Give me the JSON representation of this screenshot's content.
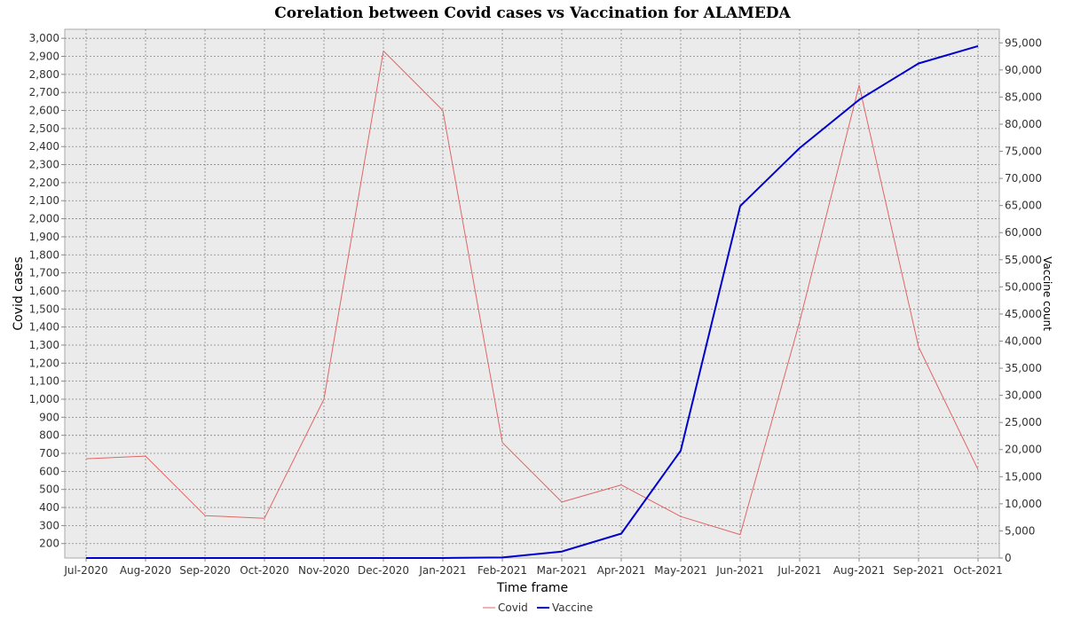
{
  "chart_data": {
    "type": "line",
    "title": "Corelation between Covid cases vs Vaccination for ALAMEDA",
    "xlabel": "Time frame",
    "ylabel": "Covid cases",
    "y2label": "Vaccine count",
    "categories": [
      "Jul-2020",
      "Aug-2020",
      "Sep-2020",
      "Oct-2020",
      "Nov-2020",
      "Dec-2020",
      "Jan-2021",
      "Feb-2021",
      "Mar-2021",
      "Apr-2021",
      "May-2021",
      "Jun-2021",
      "Jul-2021",
      "Aug-2021",
      "Sep-2021",
      "Oct-2021"
    ],
    "ylim": [
      120,
      3050
    ],
    "yticks": [
      200,
      300,
      400,
      500,
      600,
      700,
      800,
      900,
      1000,
      1100,
      1200,
      1300,
      1400,
      1500,
      1600,
      1700,
      1800,
      1900,
      2000,
      2100,
      2200,
      2300,
      2400,
      2500,
      2600,
      2700,
      2800,
      2900,
      3000
    ],
    "y2lim": [
      0,
      97500
    ],
    "y2ticks": [
      0,
      5000,
      10000,
      15000,
      20000,
      25000,
      30000,
      35000,
      40000,
      45000,
      50000,
      55000,
      60000,
      65000,
      70000,
      75000,
      80000,
      85000,
      90000,
      95000
    ],
    "grid": true,
    "legend": "bottom",
    "series": [
      {
        "name": "Covid",
        "axis": "left",
        "color": "#e06666",
        "values": [
          670,
          685,
          355,
          340,
          1000,
          2930,
          2600,
          760,
          430,
          525,
          350,
          250,
          1430,
          2740,
          1290,
          610
        ]
      },
      {
        "name": "Vaccine",
        "axis": "right",
        "color": "#0000cc",
        "values": [
          0,
          0,
          0,
          0,
          0,
          0,
          0,
          100,
          1200,
          4500,
          19800,
          64900,
          75600,
          84500,
          91200,
          94400
        ]
      }
    ]
  }
}
